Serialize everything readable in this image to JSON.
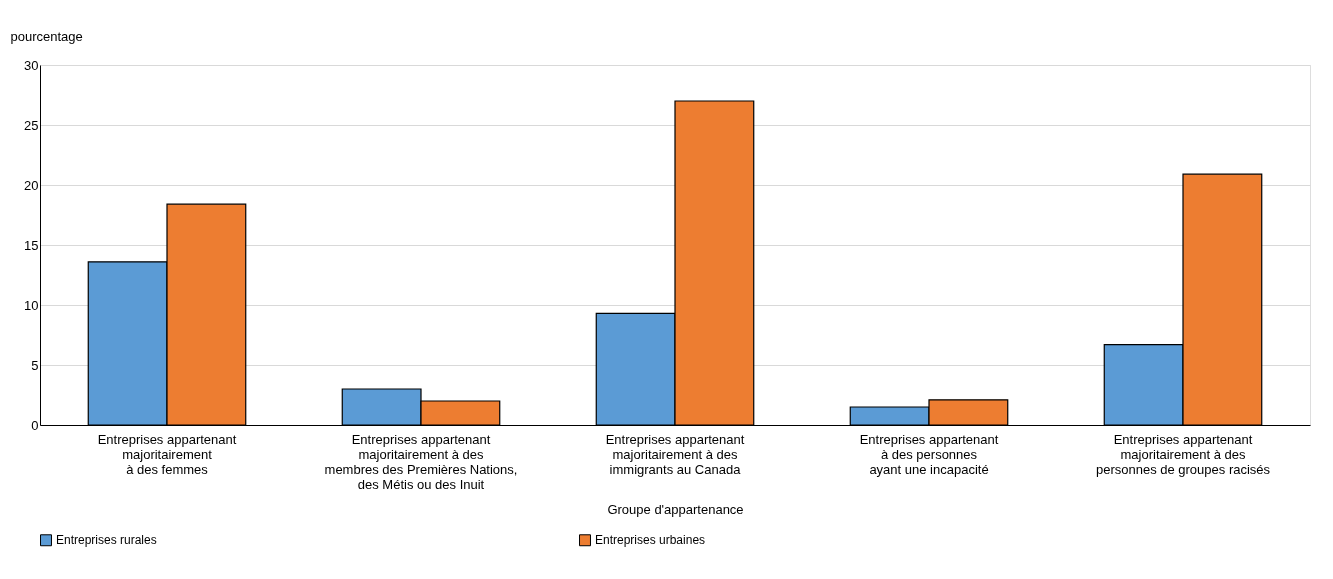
{
  "chart_data": {
    "type": "bar",
    "categories": [
      "Entreprises appartenant\nmajoritairement\nà des  femmes",
      "Entreprises appartenant\nmajoritairement à des\nmembres des Premières Nations,\ndes Métis ou des Inuit",
      "Entreprises appartenant\nmajoritairement à des\nimmigrants au Canada",
      "Entreprises appartenant\nà des personnes\nayant une incapacité",
      "Entreprises appartenant\nmajoritairement à des\npersonnes de groupes racisés"
    ],
    "series": [
      {
        "name": "Entreprises rurales",
        "color": "#5b9bd5",
        "values": [
          13.6,
          3.0,
          9.3,
          1.5,
          6.7
        ]
      },
      {
        "name": "Entreprises urbaines",
        "color": "#ed7d31",
        "values": [
          18.4,
          2.0,
          27.0,
          2.1,
          20.9
        ]
      }
    ],
    "xlabel": "Groupe d'appartenance",
    "ylabel": "pourcentage",
    "ylim": [
      0,
      30
    ],
    "yticks": [
      0,
      5,
      10,
      15,
      20,
      25,
      30
    ],
    "grid": "y",
    "legend": "bottom"
  }
}
